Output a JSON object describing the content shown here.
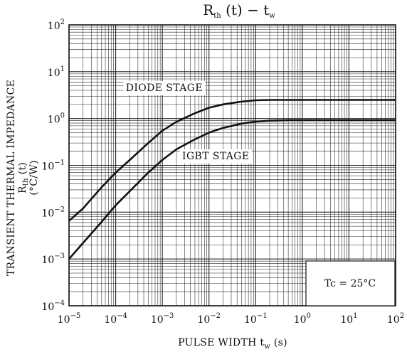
{
  "chart_data": {
    "type": "line",
    "title": {
      "main": "R",
      "main_sub": "th",
      "mid": " (t) − t",
      "end_sub": "w"
    },
    "xlabel": {
      "main": "PULSE WIDTH   t",
      "sub": "w",
      "unit": "   (s)"
    },
    "ylabel": {
      "line1": "TRANSIENT THERMAL IMPEDANCE",
      "line2_main": "R",
      "line2_sub": "th",
      "line2_end": " (t)",
      "line3": "(°C/W)"
    },
    "x_scale": "log",
    "y_scale": "log",
    "xlim": [
      1e-05,
      100
    ],
    "ylim": [
      0.0001,
      100
    ],
    "grid": true,
    "xticks": [
      {
        "base": "10",
        "exp": "−5"
      },
      {
        "base": "10",
        "exp": "−4"
      },
      {
        "base": "10",
        "exp": "−3"
      },
      {
        "base": "10",
        "exp": "−2"
      },
      {
        "base": "10",
        "exp": "−1"
      },
      {
        "base": "10",
        "exp": "0"
      },
      {
        "base": "10",
        "exp": "1"
      },
      {
        "base": "10",
        "exp": "2"
      }
    ],
    "yticks": [
      {
        "base": "10",
        "exp": "−4"
      },
      {
        "base": "10",
        "exp": "−3"
      },
      {
        "base": "10",
        "exp": "−2"
      },
      {
        "base": "10",
        "exp": "−1"
      },
      {
        "base": "10",
        "exp": "0"
      },
      {
        "base": "10",
        "exp": "1"
      },
      {
        "base": "10",
        "exp": "2"
      }
    ],
    "series": [
      {
        "name": "DIODE STAGE",
        "x": [
          1e-05,
          2e-05,
          5e-05,
          0.0001,
          0.0002,
          0.0005,
          0.001,
          0.002,
          0.005,
          0.01,
          0.02,
          0.05,
          0.1,
          0.2,
          0.5,
          1,
          10,
          100
        ],
        "y": [
          0.0065,
          0.012,
          0.034,
          0.07,
          0.13,
          0.3,
          0.55,
          0.85,
          1.3,
          1.7,
          2.0,
          2.3,
          2.45,
          2.5,
          2.5,
          2.5,
          2.5,
          2.5
        ]
      },
      {
        "name": "IGBT STAGE",
        "x": [
          1e-05,
          2e-05,
          5e-05,
          0.0001,
          0.0002,
          0.0005,
          0.001,
          0.002,
          0.005,
          0.01,
          0.02,
          0.05,
          0.1,
          0.2,
          0.5,
          1,
          10,
          100
        ],
        "y": [
          0.001,
          0.0022,
          0.0062,
          0.014,
          0.028,
          0.07,
          0.13,
          0.22,
          0.36,
          0.5,
          0.63,
          0.78,
          0.86,
          0.9,
          0.92,
          0.92,
          0.92,
          0.92
        ]
      }
    ],
    "annotations": {
      "condition": "Tc = 25°C"
    }
  }
}
